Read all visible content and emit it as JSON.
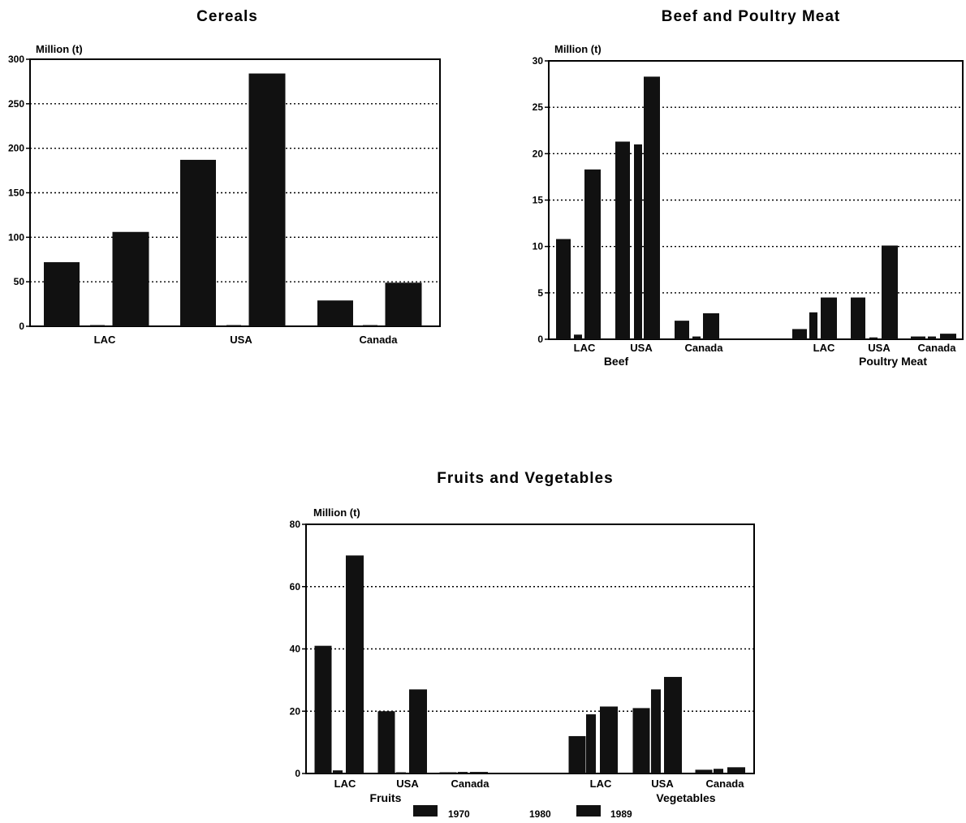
{
  "chart_data": [
    {
      "type": "bar",
      "title": "Cereals",
      "ylabel": "Million (t)",
      "ylim": [
        0,
        300
      ],
      "yticks": [
        "0",
        "50",
        "100",
        "150",
        "200",
        "250",
        "300"
      ],
      "grid": true,
      "categories": [
        "LAC",
        "USA",
        "Canada"
      ],
      "series": [
        {
          "name": "1970",
          "values": [
            72,
            187,
            29
          ]
        },
        {
          "name": "1980",
          "values": [
            1,
            1,
            1
          ]
        },
        {
          "name": "1989",
          "values": [
            106,
            284,
            49
          ]
        }
      ]
    },
    {
      "type": "bar",
      "title": "Beef and Poultry Meat",
      "ylabel": "Million (t)",
      "ylim": [
        0,
        30
      ],
      "yticks": [
        "0",
        "5",
        "10",
        "15",
        "20",
        "25",
        "30"
      ],
      "grid": true,
      "groups": [
        {
          "label": "Beef",
          "categories": [
            "LAC",
            "USA",
            "Canada"
          ],
          "series": [
            {
              "name": "1970",
              "values": [
                10.8,
                21.3,
                2.0
              ]
            },
            {
              "name": "1980",
              "values": [
                0.5,
                21.0,
                0.3
              ]
            },
            {
              "name": "1989",
              "values": [
                18.3,
                28.3,
                2.8
              ]
            }
          ]
        },
        {
          "label": "Poultry Meat",
          "categories": [
            "LAC",
            "USA",
            "Canada"
          ],
          "series": [
            {
              "name": "1970",
              "values": [
                1.1,
                4.5,
                0.3
              ]
            },
            {
              "name": "1980",
              "values": [
                2.9,
                0.2,
                0.3
              ]
            },
            {
              "name": "1989",
              "values": [
                4.5,
                10.1,
                0.6
              ]
            }
          ]
        }
      ]
    },
    {
      "type": "bar",
      "title": "Fruits and Vegetables",
      "ylabel": "Million (t)",
      "ylim": [
        0,
        80
      ],
      "yticks": [
        "0",
        "20",
        "40",
        "60",
        "80"
      ],
      "grid": true,
      "groups": [
        {
          "label": "Fruits",
          "categories": [
            "LAC",
            "USA",
            "Canada"
          ],
          "series": [
            {
              "name": "1970",
              "values": [
                41,
                20,
                0.3
              ]
            },
            {
              "name": "1980",
              "values": [
                1,
                0.3,
                0.5
              ]
            },
            {
              "name": "1989",
              "values": [
                70,
                27,
                0.5
              ]
            }
          ]
        },
        {
          "label": "Vegetables",
          "categories": [
            "LAC",
            "USA",
            "Canada"
          ],
          "series": [
            {
              "name": "1970",
              "values": [
                12,
                21,
                1.2
              ]
            },
            {
              "name": "1980",
              "values": [
                19,
                27,
                1.5
              ]
            },
            {
              "name": "1989",
              "values": [
                21.5,
                31,
                2.0
              ]
            }
          ]
        }
      ]
    }
  ],
  "legend": {
    "items": [
      {
        "label": "1970",
        "swatch": true
      },
      {
        "label": "1980",
        "swatch": false
      },
      {
        "label": "1989",
        "swatch": true
      }
    ]
  },
  "colors": {
    "bar": "#111111",
    "axis": "#000000",
    "grid": "#000000"
  }
}
